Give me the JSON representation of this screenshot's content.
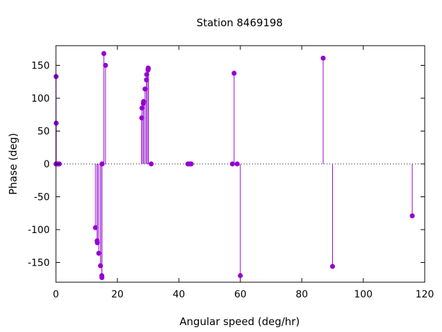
{
  "chart_data": {
    "type": "scatter",
    "title": "Station 8469198",
    "xlabel": "Angular speed (deg/hr)",
    "ylabel": "Phase (deg)",
    "xlim": [
      0,
      120
    ],
    "ylim": [
      -180,
      180
    ],
    "xticks": [
      0,
      20,
      40,
      60,
      80,
      100,
      120
    ],
    "yticks": [
      -150,
      -100,
      -50,
      0,
      50,
      100,
      150
    ],
    "grid": false,
    "zero_line": true,
    "legend": "none",
    "color": "#9400d3",
    "series": [
      {
        "points": [
          {
            "x": 0.0,
            "y": 0.0
          },
          {
            "x": 0.04,
            "y": 133
          },
          {
            "x": 0.08,
            "y": 62
          },
          {
            "x": 0.49,
            "y": 0.0
          },
          {
            "x": 0.55,
            "y": 0.0
          },
          {
            "x": 1.0,
            "y": 0.0
          },
          {
            "x": 1.1,
            "y": 0.0
          },
          {
            "x": 12.85,
            "y": -97
          },
          {
            "x": 13.4,
            "y": -117
          },
          {
            "x": 13.47,
            "y": -120
          },
          {
            "x": 13.94,
            "y": -136
          },
          {
            "x": 14.5,
            "y": -155
          },
          {
            "x": 14.92,
            "y": -170
          },
          {
            "x": 14.96,
            "y": -173
          },
          {
            "x": 15.0,
            "y": 0.0
          },
          {
            "x": 15.04,
            "y": 0.0
          },
          {
            "x": 15.59,
            "y": 168
          },
          {
            "x": 16.14,
            "y": 150
          },
          {
            "x": 27.9,
            "y": 70
          },
          {
            "x": 28.0,
            "y": 85
          },
          {
            "x": 28.44,
            "y": 92
          },
          {
            "x": 28.51,
            "y": 95
          },
          {
            "x": 28.99,
            "y": 114
          },
          {
            "x": 29.46,
            "y": 128
          },
          {
            "x": 29.53,
            "y": 136
          },
          {
            "x": 29.96,
            "y": 143
          },
          {
            "x": 30.0,
            "y": 146
          },
          {
            "x": 30.08,
            "y": 145
          },
          {
            "x": 31.0,
            "y": 0.0
          },
          {
            "x": 42.93,
            "y": 0.0
          },
          {
            "x": 43.48,
            "y": 0.0
          },
          {
            "x": 44.03,
            "y": 0.0
          },
          {
            "x": 57.42,
            "y": 0.0
          },
          {
            "x": 57.97,
            "y": 138
          },
          {
            "x": 58.98,
            "y": 0.0
          },
          {
            "x": 60.0,
            "y": -170
          },
          {
            "x": 86.95,
            "y": 161
          },
          {
            "x": 90.0,
            "y": -156
          },
          {
            "x": 115.94,
            "y": -79
          }
        ]
      }
    ]
  }
}
